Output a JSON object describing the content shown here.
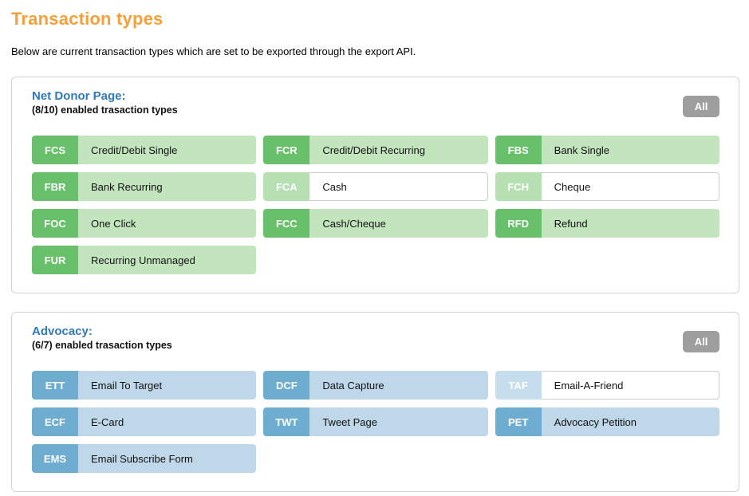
{
  "page": {
    "title": "Transaction types",
    "subtitle": "Below are current transaction types which are set to be exported through the export API."
  },
  "colors": {
    "title_orange": "#f7a03b",
    "section_blue": "#3079b8",
    "green_badge": "#69c06b",
    "green_body": "#c3e5be",
    "green_badge_disabled": "#b6e0b2",
    "blue_badge": "#6eacd0",
    "blue_body": "#bed8e9",
    "blue_badge_disabled": "#c5ddec",
    "all_button_gray": "#9e9e9e"
  },
  "sections": [
    {
      "title": "Net Donor Page:",
      "count_label": "(8/10) enabled trasaction types",
      "all_button_label": "All",
      "theme": "green",
      "items": [
        {
          "code": "FCS",
          "label": "Credit/Debit Single",
          "enabled": true
        },
        {
          "code": "FCR",
          "label": "Credit/Debit Recurring",
          "enabled": true
        },
        {
          "code": "FBS",
          "label": "Bank Single",
          "enabled": true
        },
        {
          "code": "FBR",
          "label": "Bank Recurring",
          "enabled": true
        },
        {
          "code": "FCA",
          "label": "Cash",
          "enabled": false
        },
        {
          "code": "FCH",
          "label": "Cheque",
          "enabled": false
        },
        {
          "code": "FOC",
          "label": "One Click",
          "enabled": true
        },
        {
          "code": "FCC",
          "label": "Cash/Cheque",
          "enabled": true
        },
        {
          "code": "RFD",
          "label": "Refund",
          "enabled": true
        },
        {
          "code": "FUR",
          "label": "Recurring Unmanaged",
          "enabled": true
        }
      ]
    },
    {
      "title": "Advocacy:",
      "count_label": "(6/7) enabled trasaction types",
      "all_button_label": "All",
      "theme": "blue",
      "items": [
        {
          "code": "ETT",
          "label": "Email To Target",
          "enabled": true
        },
        {
          "code": "DCF",
          "label": "Data Capture",
          "enabled": true
        },
        {
          "code": "TAF",
          "label": "Email-A-Friend",
          "enabled": false
        },
        {
          "code": "ECF",
          "label": "E-Card",
          "enabled": true
        },
        {
          "code": "TWT",
          "label": "Tweet Page",
          "enabled": true
        },
        {
          "code": "PET",
          "label": "Advocacy Petition",
          "enabled": true
        },
        {
          "code": "EMS",
          "label": "Email Subscribe Form",
          "enabled": true
        }
      ]
    }
  ]
}
